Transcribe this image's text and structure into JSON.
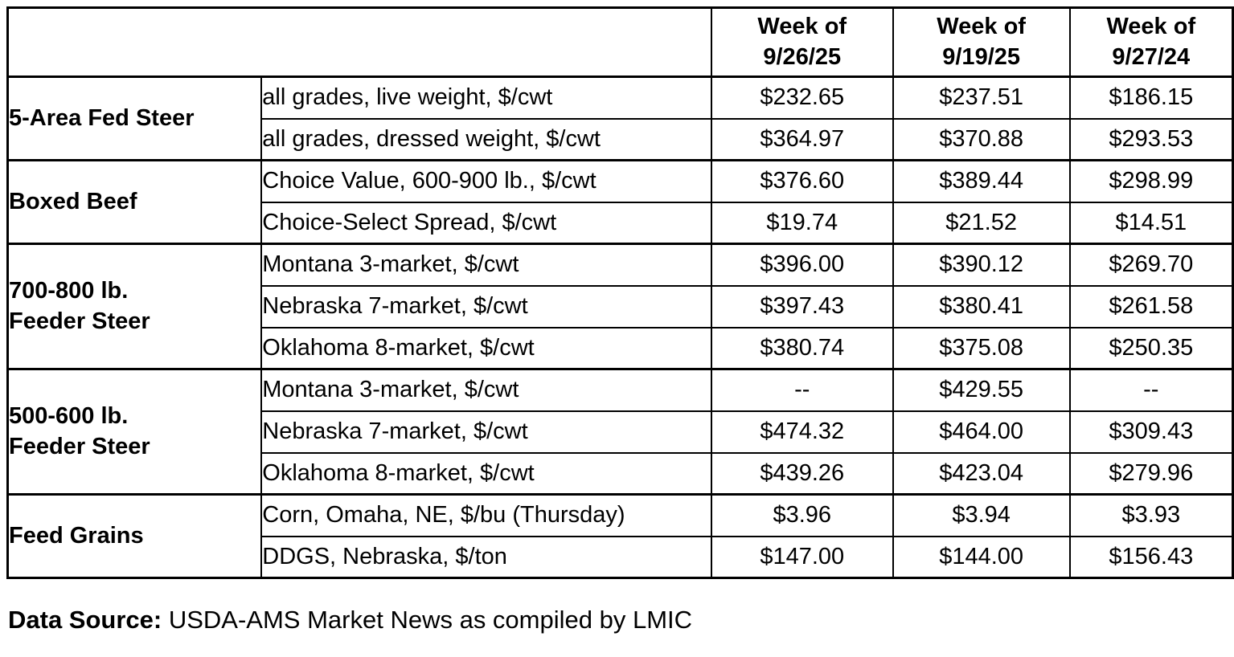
{
  "table": {
    "header": {
      "corner": "",
      "columns": [
        {
          "line1": "Week of",
          "line2": "9/26/25"
        },
        {
          "line1": "Week of",
          "line2": "9/19/25"
        },
        {
          "line1": "Week of",
          "line2": "9/27/24"
        }
      ]
    },
    "groups": [
      {
        "label_lines": [
          "5-Area Fed Steer"
        ],
        "rows": [
          {
            "item": "all grades, live weight, $/cwt",
            "values": [
              "$232.65",
              "$237.51",
              "$186.15"
            ]
          },
          {
            "item": "all grades, dressed weight, $/cwt",
            "values": [
              "$364.97",
              "$370.88",
              "$293.53"
            ]
          }
        ]
      },
      {
        "label_lines": [
          "Boxed Beef"
        ],
        "rows": [
          {
            "item": "Choice Value, 600-900 lb., $/cwt",
            "values": [
              "$376.60",
              "$389.44",
              "$298.99"
            ]
          },
          {
            "item": "Choice-Select Spread, $/cwt",
            "values": [
              "$19.74",
              "$21.52",
              "$14.51"
            ]
          }
        ]
      },
      {
        "label_lines": [
          "700-800 lb.",
          "Feeder Steer"
        ],
        "rows": [
          {
            "item": "Montana 3-market, $/cwt",
            "values": [
              "$396.00",
              "$390.12",
              "$269.70"
            ]
          },
          {
            "item": "Nebraska 7-market, $/cwt",
            "values": [
              "$397.43",
              "$380.41",
              "$261.58"
            ]
          },
          {
            "item": "Oklahoma 8-market, $/cwt",
            "values": [
              "$380.74",
              "$375.08",
              "$250.35"
            ]
          }
        ]
      },
      {
        "label_lines": [
          "500-600 lb.",
          "Feeder Steer"
        ],
        "rows": [
          {
            "item": "Montana 3-market, $/cwt",
            "values": [
              "--",
              "$429.55",
              "--"
            ]
          },
          {
            "item": "Nebraska 7-market, $/cwt",
            "values": [
              "$474.32",
              "$464.00",
              "$309.43"
            ]
          },
          {
            "item": "Oklahoma 8-market, $/cwt",
            "values": [
              "$439.26",
              "$423.04",
              "$279.96"
            ]
          }
        ]
      },
      {
        "label_lines": [
          "Feed Grains"
        ],
        "rows": [
          {
            "item": "Corn, Omaha, NE, $/bu (Thursday)",
            "values": [
              "$3.96",
              "$3.94",
              "$3.93"
            ]
          },
          {
            "item": "DDGS, Nebraska, $/ton",
            "values": [
              "$147.00",
              "$144.00",
              "$156.43"
            ]
          }
        ]
      }
    ]
  },
  "footer": {
    "label": "Data Source:",
    "text": "USDA-AMS Market News as compiled by LMIC"
  },
  "colors": {
    "border": "#000000",
    "text": "#000000",
    "background": "#ffffff"
  }
}
